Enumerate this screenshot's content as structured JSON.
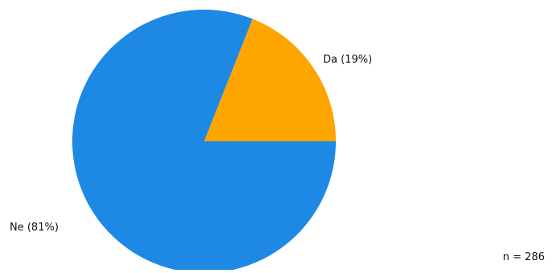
{
  "chart_data": {
    "type": "pie",
    "slices": [
      {
        "label": "Da (19%)",
        "value": 19,
        "color": "#ffa500"
      },
      {
        "label": "Ne (81%)",
        "value": 81,
        "color": "#1e88e5"
      }
    ],
    "start": "3 o'clock",
    "direction": "counterclockwise"
  },
  "footer": {
    "n_text": "n = 286"
  }
}
